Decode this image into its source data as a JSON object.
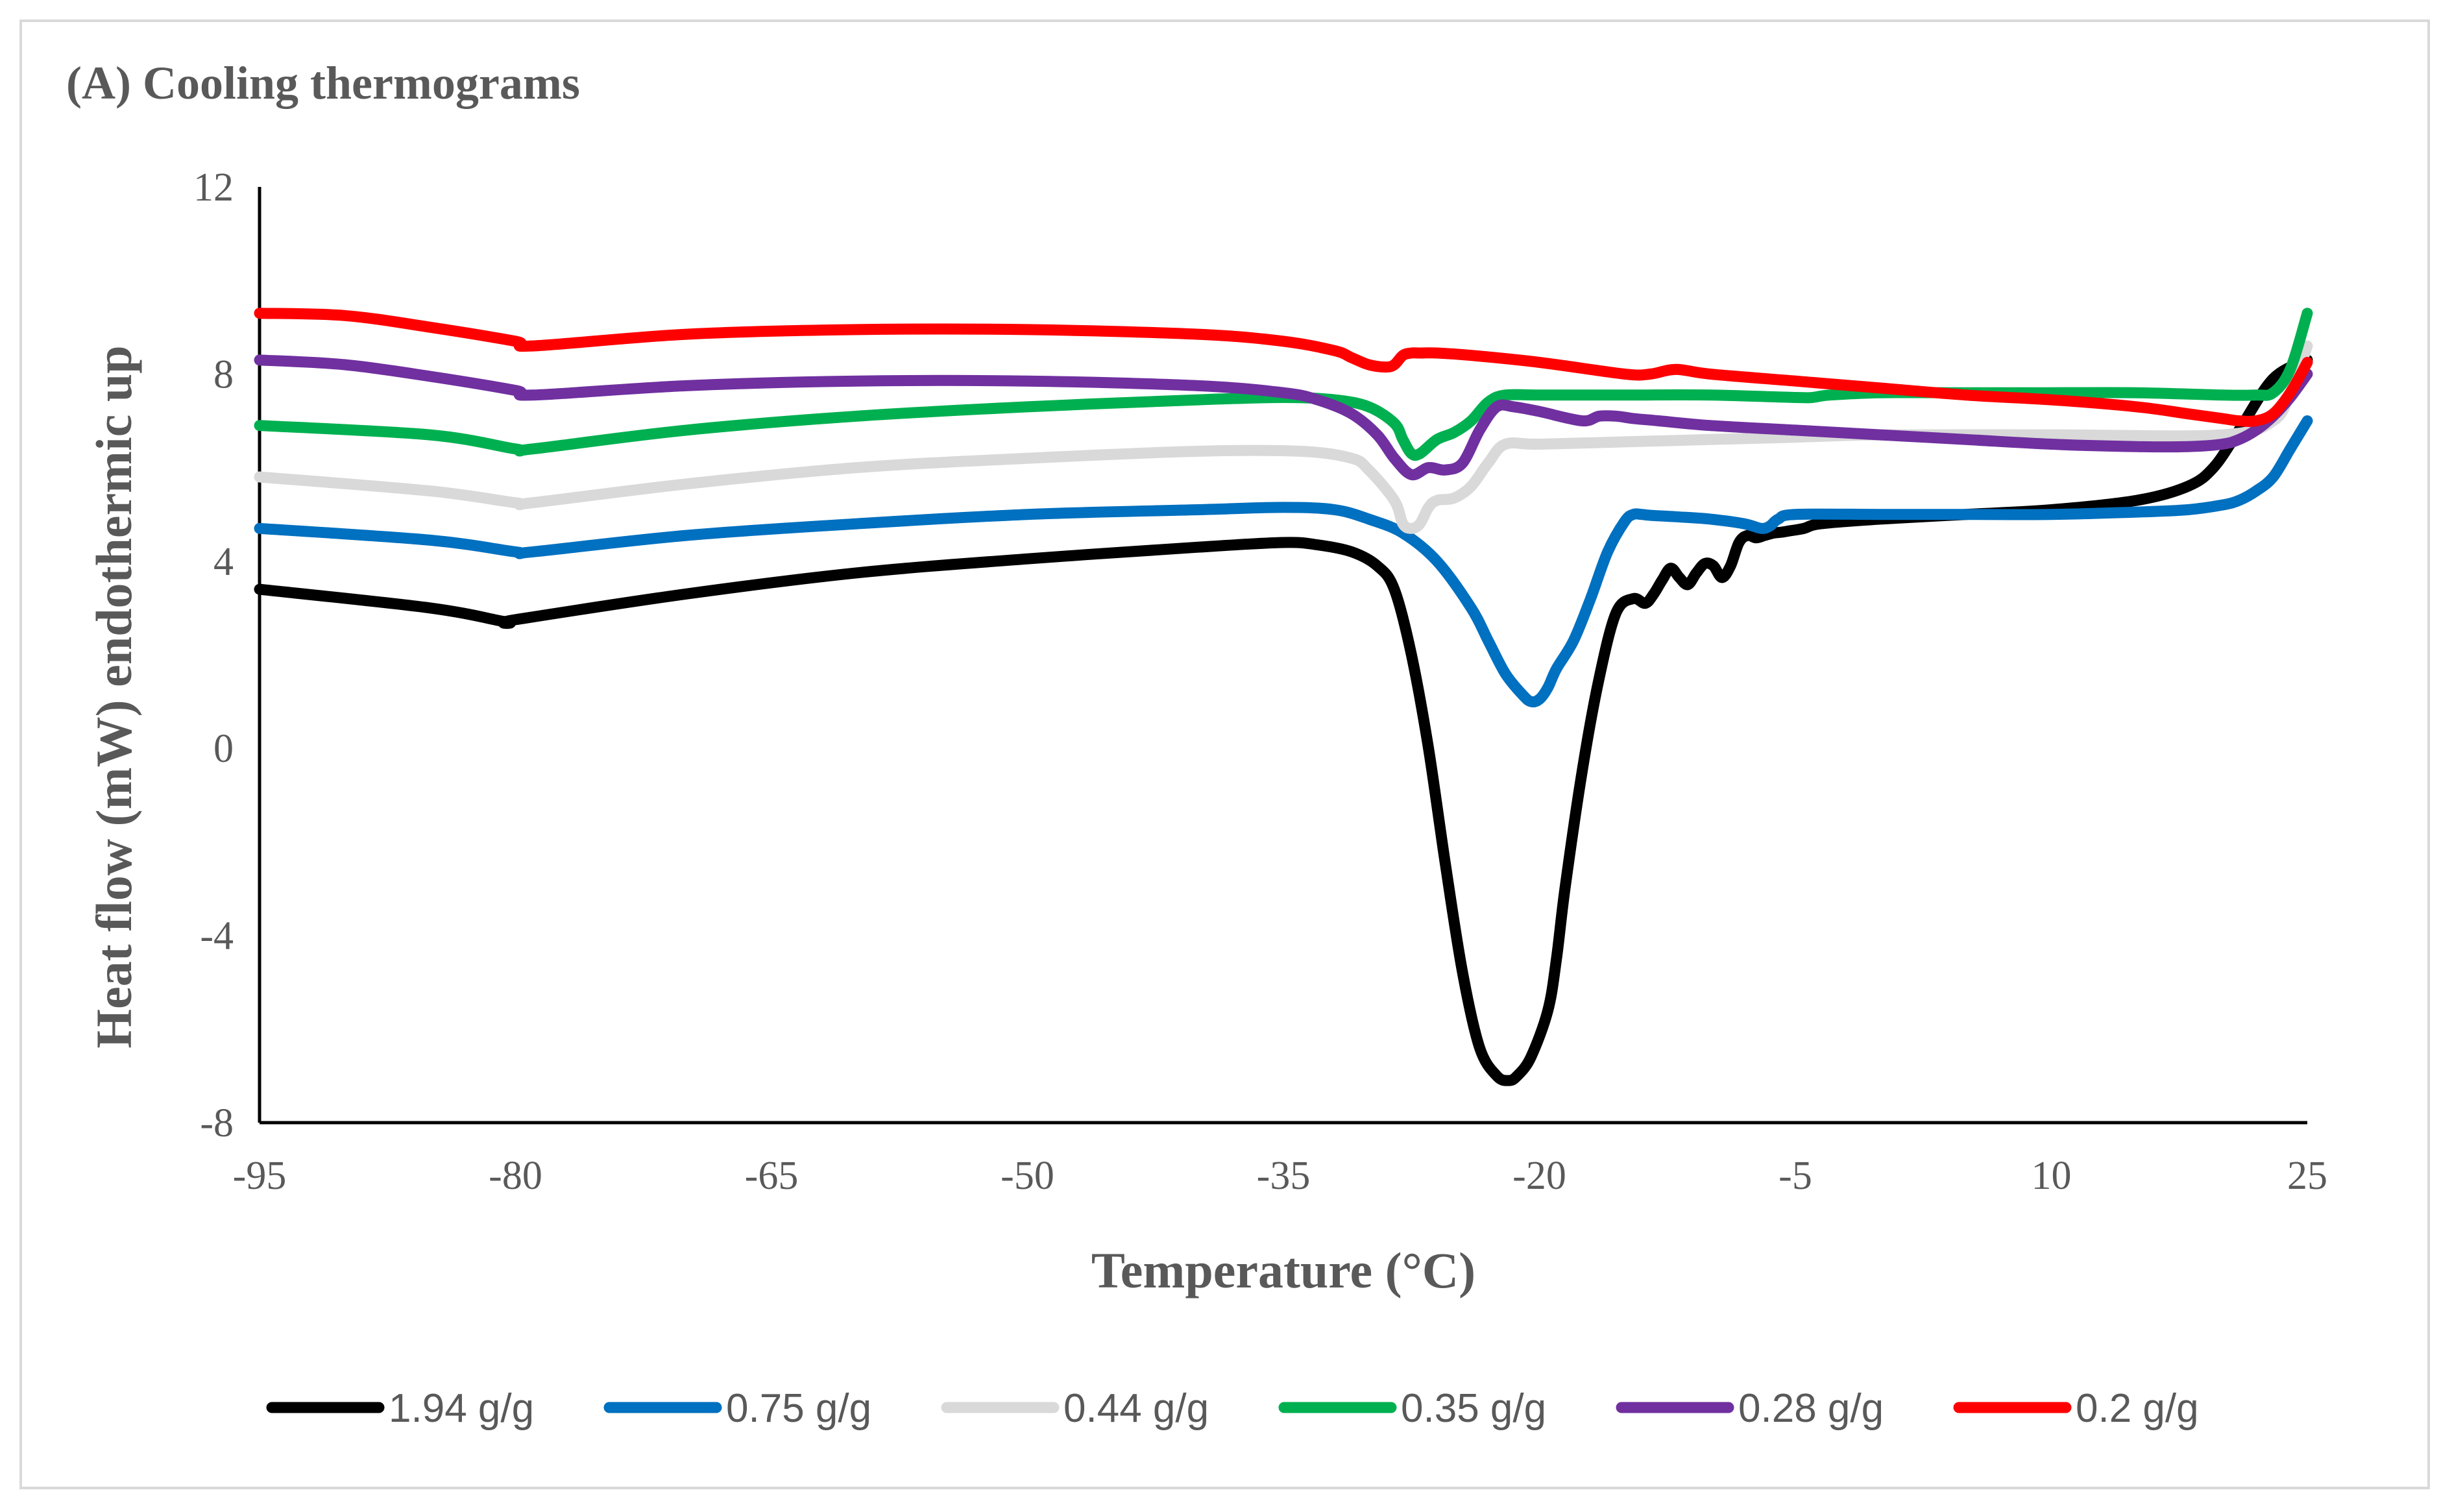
{
  "chart_data": {
    "type": "line",
    "title": "(A) Cooling thermograms",
    "xlabel": "Temperature (°C)",
    "ylabel": "Heat flow (mW) endothermic up",
    "xlim": [
      -95,
      25
    ],
    "ylim": [
      -8,
      12
    ],
    "xticks": [
      -95,
      -80,
      -65,
      -50,
      -35,
      -20,
      -5,
      10,
      25
    ],
    "yticks": [
      -8,
      -4,
      0,
      4,
      8,
      12
    ],
    "grid": false,
    "legend_position": "bottom",
    "series": [
      {
        "name": "1.94 g/g",
        "color": "#000000",
        "x": [
          -95,
          -85,
          -80.5,
          -80,
          -70,
          -60,
          -50,
          -40,
          -35,
          -33,
          -31,
          -29.5,
          -28.5,
          -27.5,
          -26.5,
          -25.5,
          -24.5,
          -23.5,
          -22.5,
          -21.8,
          -21.3,
          -20.5,
          -19.5,
          -19,
          -18.5,
          -17.5,
          -16.5,
          -15.5,
          -14.5,
          -13.8,
          -13.3,
          -12.8,
          -12.3,
          -11.8,
          -11.3,
          -10.8,
          -10.3,
          -9.8,
          -9.3,
          -8.8,
          -8.3,
          -7.8,
          -7.3,
          -6.8,
          -6.3,
          -5.8,
          -5.3,
          -4.5,
          -3.5,
          0,
          5,
          10,
          15,
          18,
          19.5,
          21,
          23,
          25
        ],
        "y": [
          3.4,
          3.0,
          2.7,
          2.75,
          3.3,
          3.75,
          4.05,
          4.3,
          4.4,
          4.35,
          4.2,
          3.9,
          3.4,
          2.0,
          0.0,
          -2.5,
          -4.8,
          -6.4,
          -7.0,
          -7.1,
          -7.0,
          -6.6,
          -5.6,
          -4.5,
          -3.0,
          -0.5,
          1.5,
          2.9,
          3.2,
          3.1,
          3.3,
          3.6,
          3.85,
          3.65,
          3.5,
          3.75,
          3.95,
          3.9,
          3.65,
          3.9,
          4.4,
          4.55,
          4.5,
          4.55,
          4.6,
          4.62,
          4.65,
          4.7,
          4.8,
          4.9,
          5.0,
          5.1,
          5.3,
          5.6,
          6.0,
          6.8,
          7.9,
          8.3
        ]
      },
      {
        "name": "0.75 g/g",
        "color": "#0070c0",
        "x": [
          -95,
          -85,
          -80,
          -79,
          -70,
          -60,
          -50,
          -40,
          -35,
          -32,
          -30,
          -28,
          -26,
          -24,
          -23,
          -22,
          -21,
          -20.5,
          -20,
          -19.5,
          -19,
          -18,
          -17,
          -16,
          -15,
          -14.5,
          -14,
          -13.5,
          -12,
          -10,
          -8,
          -7,
          -6.5,
          -6,
          -5,
          0,
          5,
          10,
          15,
          18,
          20,
          21,
          22,
          23,
          24,
          25
        ],
        "y": [
          4.7,
          4.45,
          4.2,
          4.2,
          4.55,
          4.8,
          5.0,
          5.1,
          5.15,
          5.1,
          4.9,
          4.6,
          4.0,
          3.0,
          2.3,
          1.6,
          1.15,
          1.0,
          1.05,
          1.3,
          1.7,
          2.3,
          3.2,
          4.2,
          4.85,
          5.0,
          5.0,
          4.98,
          4.95,
          4.9,
          4.8,
          4.7,
          4.75,
          4.9,
          5.0,
          5.0,
          5.0,
          5.0,
          5.05,
          5.1,
          5.2,
          5.3,
          5.5,
          5.8,
          6.4,
          7.0
        ]
      },
      {
        "name": "0.44 g/g",
        "color": "#d9d9d9",
        "x": [
          -95,
          -85,
          -80,
          -79,
          -70,
          -60,
          -50,
          -40,
          -34,
          -31,
          -30,
          -28.5,
          -28,
          -27.5,
          -27,
          -26.5,
          -26,
          -25,
          -24,
          -23,
          -22,
          -20,
          -15,
          -10,
          -5,
          0,
          10,
          20,
          23,
          24,
          25
        ],
        "y": [
          5.8,
          5.5,
          5.25,
          5.25,
          5.65,
          6.0,
          6.2,
          6.35,
          6.35,
          6.2,
          5.95,
          5.3,
          4.8,
          4.7,
          4.8,
          5.15,
          5.3,
          5.35,
          5.6,
          6.1,
          6.5,
          6.5,
          6.55,
          6.6,
          6.65,
          6.7,
          6.7,
          6.7,
          7.0,
          7.6,
          8.6
        ]
      },
      {
        "name": "0.35 g/g",
        "color": "#00b050",
        "x": [
          -95,
          -85,
          -80,
          -79,
          -70,
          -60,
          -50,
          -40,
          -35,
          -32,
          -30,
          -28.5,
          -28,
          -27.5,
          -27,
          -26,
          -25,
          -24,
          -23,
          -22,
          -20,
          -15,
          -10,
          -5,
          -4,
          -3,
          0,
          5,
          10,
          15,
          20,
          22,
          23,
          24,
          25
        ],
        "y": [
          6.9,
          6.7,
          6.4,
          6.4,
          6.8,
          7.1,
          7.3,
          7.45,
          7.5,
          7.45,
          7.3,
          6.95,
          6.6,
          6.3,
          6.3,
          6.6,
          6.75,
          7.0,
          7.4,
          7.55,
          7.55,
          7.55,
          7.55,
          7.5,
          7.5,
          7.55,
          7.6,
          7.6,
          7.6,
          7.6,
          7.55,
          7.55,
          7.6,
          8.1,
          9.3
        ]
      },
      {
        "name": "0.28 g/g",
        "color": "#7030a0",
        "x": [
          -95,
          -90,
          -85,
          -80,
          -79,
          -70,
          -60,
          -50,
          -40,
          -35,
          -33,
          -31,
          -29.5,
          -28.5,
          -27.5,
          -26.5,
          -25.5,
          -24.5,
          -23.5,
          -22.5,
          -21.5,
          -20,
          -17.5,
          -16.5,
          -15.5,
          -14.5,
          -13,
          -10,
          -5,
          0,
          5,
          10,
          15,
          18,
          20,
          21,
          22,
          23,
          24,
          25
        ],
        "y": [
          8.3,
          8.2,
          7.95,
          7.65,
          7.55,
          7.75,
          7.85,
          7.85,
          7.75,
          7.6,
          7.45,
          7.15,
          6.7,
          6.2,
          5.85,
          6.0,
          5.95,
          6.1,
          6.8,
          7.3,
          7.3,
          7.2,
          7.0,
          7.1,
          7.1,
          7.05,
          7.0,
          6.9,
          6.8,
          6.7,
          6.6,
          6.5,
          6.45,
          6.45,
          6.5,
          6.6,
          6.8,
          7.1,
          7.5,
          8.0
        ]
      },
      {
        "name": "0.2 g/g",
        "color": "#ff0000",
        "x": [
          -95,
          -90,
          -85,
          -80,
          -79,
          -70,
          -60,
          -50,
          -40,
          -35,
          -32,
          -31,
          -30,
          -29,
          -28.5,
          -28,
          -27.5,
          -27,
          -26,
          -24,
          -20,
          -15,
          -13.5,
          -12,
          -10,
          -5,
          0,
          5,
          10,
          15,
          18,
          20,
          21,
          22,
          23,
          24,
          25
        ],
        "y": [
          9.3,
          9.25,
          9.0,
          8.7,
          8.6,
          8.85,
          8.95,
          8.95,
          8.85,
          8.7,
          8.5,
          8.35,
          8.2,
          8.15,
          8.2,
          8.4,
          8.45,
          8.45,
          8.45,
          8.4,
          8.25,
          8.0,
          8.0,
          8.1,
          8.0,
          7.85,
          7.7,
          7.55,
          7.45,
          7.3,
          7.15,
          7.05,
          7.0,
          7.0,
          7.15,
          7.6,
          8.25
        ]
      }
    ]
  }
}
